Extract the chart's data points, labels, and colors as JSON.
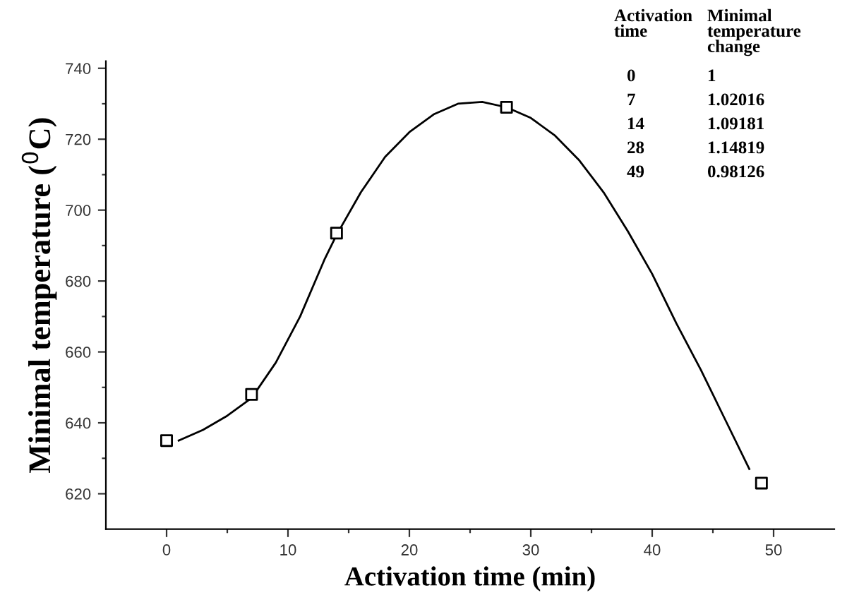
{
  "chart_data": {
    "type": "scatter",
    "xlabel": "Activation time (min)",
    "ylabel": "Minimal temperature ($^{0}$C)",
    "xlim": [
      -5,
      55
    ],
    "ylim": [
      610,
      742
    ],
    "xticks": [
      0,
      {
        "value": 5,
        "label": null
      },
      10,
      {
        "value": 15,
        "label": null
      },
      20,
      {
        "value": 25,
        "label": null
      },
      30,
      {
        "value": 35,
        "label": null
      },
      40,
      {
        "value": 45,
        "label": null
      },
      50
    ],
    "yticks": [
      620,
      {
        "value": 630,
        "label": null
      },
      640,
      {
        "value": 650,
        "label": null
      },
      660,
      {
        "value": 670,
        "label": null
      },
      680,
      {
        "value": 690,
        "label": null
      },
      700,
      {
        "value": 710,
        "label": null
      },
      720,
      {
        "value": 730,
        "label": null
      },
      740
    ],
    "grid": false,
    "legend": false,
    "series": [
      {
        "marker": "square",
        "color": "#000000",
        "x": [
          0,
          7,
          14,
          28,
          49
        ],
        "values": [
          635,
          648,
          693.5,
          729,
          623
        ]
      },
      {
        "type": "line",
        "marker": "none",
        "line_style": "solid",
        "color": "#000000",
        "x": [
          1,
          3,
          5,
          7,
          9,
          11,
          13,
          14,
          16,
          18,
          20,
          22,
          24,
          26,
          28,
          30,
          32,
          34,
          36,
          38,
          40,
          42,
          44,
          46,
          48
        ],
        "values": [
          635,
          638,
          642,
          647,
          657,
          670,
          686,
          693,
          705,
          715,
          722,
          727,
          730,
          730.5,
          729,
          726,
          721,
          714,
          705,
          694,
          682,
          668,
          655,
          641,
          627
        ]
      }
    ],
    "annotations": [
      "Activation\ntime",
      "Minimal\ntemperature\nchange",
      "0",
      "1",
      "7",
      "1.02016",
      "14",
      "1.09181",
      "28",
      "1.14819",
      "49",
      "0.98126"
    ]
  }
}
